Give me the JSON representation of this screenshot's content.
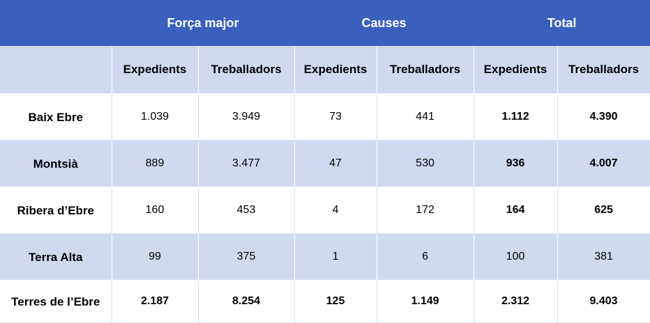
{
  "table": {
    "group_headers": [
      "",
      "Força major",
      "Causes",
      "Total"
    ],
    "sub_headers": [
      "",
      "Expedients",
      "Treballadors",
      "Expedients",
      "Treballadors",
      "Expedients",
      "Treballadors"
    ],
    "rows": [
      {
        "region": "Baix Ebre",
        "values": [
          "1.039",
          "3.949",
          "73",
          "441",
          "1.112",
          "4.390"
        ]
      },
      {
        "region": "Montsià",
        "values": [
          "889",
          "3.477",
          "47",
          "530",
          "936",
          "4.007"
        ]
      },
      {
        "region": "Ribera d’Ebre",
        "values": [
          "160",
          "453",
          "4",
          "172",
          "164",
          "625"
        ]
      },
      {
        "region": "Terra Alta",
        "values": [
          "99",
          "375",
          "1",
          "6",
          "100",
          "381"
        ]
      },
      {
        "region": "Terres de l’Ebre",
        "values": [
          "2.187",
          "8.254",
          "125",
          "1.149",
          "2.312",
          "9.403"
        ]
      }
    ]
  },
  "colors": {
    "header_blue": "#3a5fbf",
    "band_light_blue": "#cfdaf1",
    "header_text": "#ffffff"
  }
}
